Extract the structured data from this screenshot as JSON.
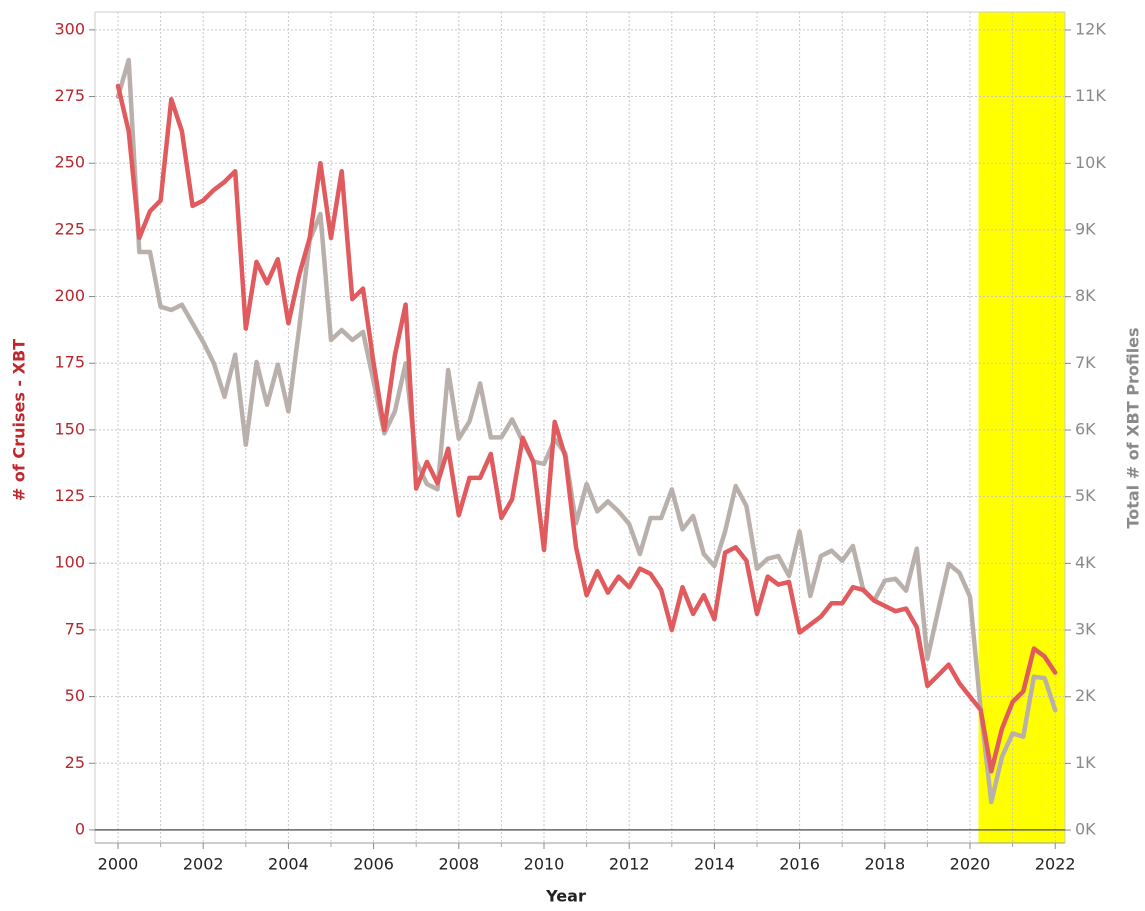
{
  "chart_data": {
    "type": "line",
    "x_label": "Year",
    "y_label": "# of Cruises - XBT",
    "y2_label": "Total # of XBT Profiles",
    "xlim": [
      1999.46,
      2022.23
    ],
    "xticks": [
      2000,
      2002,
      2004,
      2006,
      2008,
      2010,
      2012,
      2014,
      2016,
      2018,
      2020,
      2022
    ],
    "x_minor_ticks": [
      2001,
      2003,
      2005,
      2007,
      2009,
      2011,
      2013,
      2015,
      2017,
      2019,
      2021
    ],
    "ylim": [
      -4.9,
      306.7
    ],
    "yticks": [
      0,
      25,
      50,
      75,
      100,
      125,
      150,
      175,
      200,
      225,
      250,
      275,
      300
    ],
    "y2lim": [
      -194,
      12270
    ],
    "y2ticks": [
      {
        "value": 0,
        "label": "0K"
      },
      {
        "value": 1000,
        "label": "1K"
      },
      {
        "value": 2000,
        "label": "2K"
      },
      {
        "value": 3000,
        "label": "3K"
      },
      {
        "value": 4000,
        "label": "4K"
      },
      {
        "value": 5000,
        "label": "5K"
      },
      {
        "value": 6000,
        "label": "6K"
      },
      {
        "value": 7000,
        "label": "7K"
      },
      {
        "value": 8000,
        "label": "8K"
      },
      {
        "value": 9000,
        "label": "9K"
      },
      {
        "value": 10000,
        "label": "10K"
      },
      {
        "value": 11000,
        "label": "11K"
      },
      {
        "value": 12000,
        "label": "12K"
      }
    ],
    "grid": true,
    "highlight": {
      "x": [
        2020.2,
        2022.23
      ],
      "color": "#ffff00"
    },
    "x": [
      2000,
      2000.25,
      2000.5,
      2000.75,
      2001,
      2001.25,
      2001.5,
      2001.75,
      2002,
      2002.25,
      2002.5,
      2002.75,
      2003,
      2003.25,
      2003.5,
      2003.75,
      2004,
      2004.25,
      2004.5,
      2004.75,
      2005,
      2005.25,
      2005.5,
      2005.75,
      2006,
      2006.25,
      2006.5,
      2006.75,
      2007,
      2007.25,
      2007.5,
      2007.75,
      2008,
      2008.25,
      2008.5,
      2008.75,
      2009,
      2009.25,
      2009.5,
      2009.75,
      2010,
      2010.25,
      2010.5,
      2010.75,
      2011,
      2011.25,
      2011.5,
      2011.75,
      2012,
      2012.25,
      2012.5,
      2012.75,
      2013,
      2013.25,
      2013.5,
      2013.75,
      2014,
      2014.25,
      2014.5,
      2014.75,
      2015,
      2015.25,
      2015.5,
      2015.75,
      2016,
      2016.25,
      2016.5,
      2016.75,
      2017,
      2017.25,
      2017.5,
      2017.75,
      2018,
      2018.25,
      2018.5,
      2018.75,
      2019,
      2019.25,
      2019.5,
      2019.75,
      2020,
      2020.25,
      2020.5,
      2020.75,
      2021,
      2021.25,
      2021.5,
      2021.75,
      2022
    ],
    "series": [
      {
        "name": "# of Cruises - XBT",
        "color": "#e05a5e",
        "values": [
          279,
          262,
          222,
          232,
          236,
          274,
          262,
          234,
          236,
          240,
          243,
          247,
          188,
          213,
          205,
          214,
          190,
          208,
          222,
          250,
          222,
          247,
          199,
          203,
          175,
          150,
          178,
          197,
          128,
          138,
          130,
          143,
          118,
          132,
          132,
          141,
          117,
          124,
          147,
          138,
          105,
          153,
          140,
          106,
          88,
          97,
          89,
          95,
          91,
          98,
          96,
          90,
          75,
          91,
          81,
          88,
          79,
          104,
          106,
          101,
          81,
          95,
          92,
          93,
          74,
          77,
          80,
          85,
          85,
          91,
          90,
          86,
          84,
          82,
          83,
          76,
          54,
          58,
          62,
          55,
          50,
          45,
          22,
          38,
          48,
          52,
          68,
          65,
          59
        ]
      },
      {
        "name": "Total # of XBT Profiles",
        "color": "#b9b0ac",
        "axis": "y2",
        "values": [
          11000,
          11550,
          8670,
          8670,
          7850,
          7800,
          7880,
          7600,
          7320,
          7000,
          6500,
          7130,
          5780,
          7020,
          6380,
          6980,
          6280,
          7520,
          8850,
          9240,
          7350,
          7500,
          7350,
          7470,
          6730,
          5950,
          6280,
          7000,
          5530,
          5190,
          5110,
          6900,
          5870,
          6130,
          6700,
          5890,
          5890,
          6160,
          5830,
          5530,
          5490,
          5860,
          5650,
          4600,
          5190,
          4780,
          4930,
          4780,
          4590,
          4140,
          4680,
          4680,
          5110,
          4510,
          4710,
          4140,
          3960,
          4480,
          5160,
          4860,
          3920,
          4070,
          4110,
          3810,
          4480,
          3510,
          4110,
          4190,
          4040,
          4260,
          3590,
          3440,
          3740,
          3770,
          3590,
          4220,
          2570,
          3290,
          3990,
          3860,
          3500,
          1800,
          420,
          1100,
          1450,
          1400,
          2300,
          2280,
          1800
        ]
      }
    ]
  }
}
